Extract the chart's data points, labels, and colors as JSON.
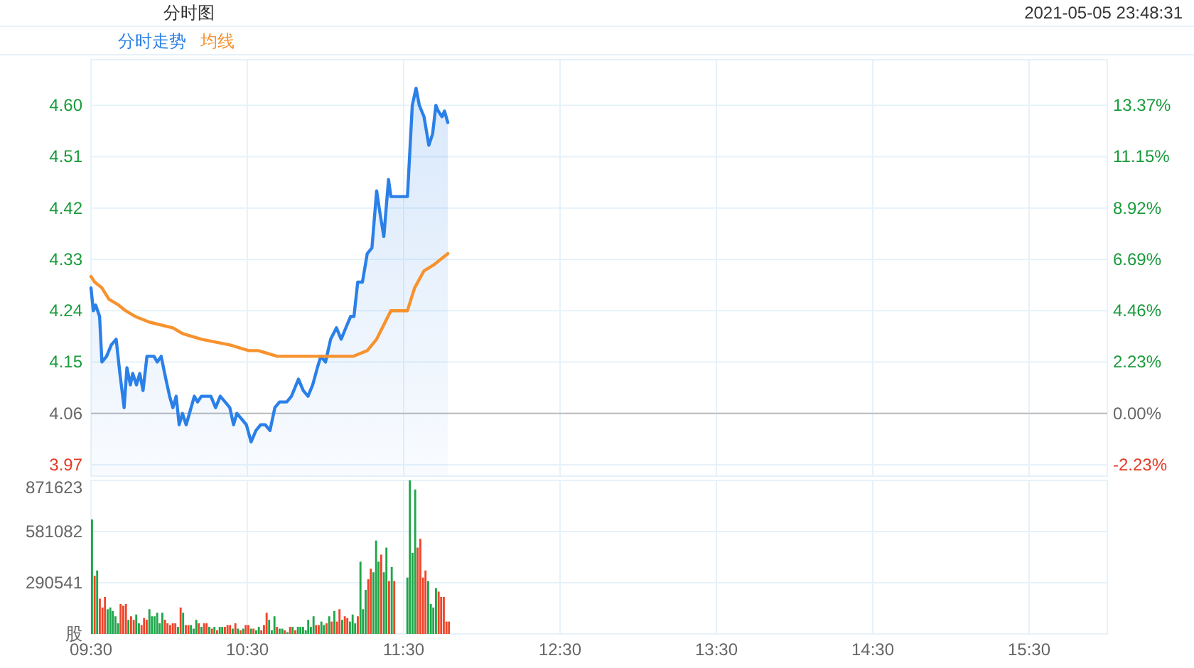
{
  "chart_data": [
    {
      "type": "line",
      "title": "分时图",
      "annotations": [
        "2021-05-05 23:48:31"
      ],
      "xlim": [
        9.5,
        16
      ],
      "xticks": [
        {
          "value": 9.5,
          "label": null
        },
        {
          "value": 10.5,
          "label": null
        },
        {
          "value": 11.5,
          "label": null
        },
        {
          "value": 12.5,
          "label": null
        },
        {
          "value": 13.5,
          "label": null
        },
        {
          "value": 14.5,
          "label": null
        },
        {
          "value": 15.5,
          "label": null
        }
      ],
      "ylim": [
        3.95,
        4.68
      ],
      "yticks": [
        3.97,
        4.06,
        4.15,
        4.24,
        4.33,
        4.42,
        4.51,
        {
          "value": 4.6,
          "label": "4.60"
        }
      ],
      "y2lim": [
        -2.72,
        15.35
      ],
      "y2ticks": [
        {
          "value": -2.23,
          "label": "-2.23%"
        },
        {
          "value": 0,
          "label": "0.00%"
        },
        {
          "value": 2.23,
          "label": "2.23%"
        },
        {
          "value": 4.46,
          "label": "4.46%"
        },
        {
          "value": 6.69,
          "label": "6.69%"
        },
        {
          "value": 8.92,
          "label": "8.92%"
        },
        {
          "value": 11.15,
          "label": "11.15%"
        },
        {
          "value": 13.37,
          "label": "13.37%"
        }
      ],
      "tick_labels": "y",
      "grid": true,
      "legend": "top left",
      "ref_lines": [
        {
          "axis": "y",
          "value": 4.06,
          "color": "#bbbbbb"
        }
      ],
      "series": [
        {
          "name": "分时走势",
          "type": "area",
          "color": "#2b80e8",
          "x": [
            9.5,
            9.515,
            9.53,
            9.555,
            9.57,
            9.6,
            9.63,
            9.661,
            9.685,
            9.712,
            9.73,
            9.752,
            9.767,
            9.791,
            9.812,
            9.833,
            9.858,
            9.879,
            9.903,
            9.924,
            9.949,
            9.979,
            10.003,
            10.024,
            10.045,
            10.064,
            10.085,
            10.109,
            10.13,
            10.161,
            10.182,
            10.206,
            10.236,
            10.267,
            10.297,
            10.327,
            10.358,
            10.388,
            10.412,
            10.433,
            10.464,
            10.494,
            10.524,
            10.555,
            10.585,
            10.615,
            10.645,
            10.676,
            10.706,
            10.752,
            10.782,
            10.827,
            10.858,
            10.888,
            10.918,
            10.948,
            10.97,
            11.0,
            11.033,
            11.07,
            11.1,
            11.13,
            11.161,
            11.182,
            11.206,
            11.236,
            11.267,
            11.297,
            11.327,
            11.349,
            11.373,
            11.403,
            11.418,
            11.494,
            11.524,
            11.555,
            11.579,
            11.6,
            11.63,
            11.661,
            11.685,
            11.706,
            11.721,
            11.745,
            11.761,
            11.782
          ],
          "values": [
            4.28,
            4.24,
            4.25,
            4.23,
            4.15,
            4.16,
            4.18,
            4.19,
            4.13,
            4.07,
            4.14,
            4.11,
            4.13,
            4.11,
            4.13,
            4.1,
            4.16,
            4.16,
            4.16,
            4.15,
            4.16,
            4.12,
            4.09,
            4.07,
            4.09,
            4.04,
            4.06,
            4.04,
            4.06,
            4.09,
            4.08,
            4.09,
            4.09,
            4.09,
            4.07,
            4.09,
            4.08,
            4.07,
            4.04,
            4.06,
            4.05,
            4.04,
            4.01,
            4.03,
            4.04,
            4.04,
            4.03,
            4.07,
            4.08,
            4.08,
            4.09,
            4.12,
            4.1,
            4.09,
            4.11,
            4.14,
            4.16,
            4.15,
            4.19,
            4.21,
            4.19,
            4.21,
            4.23,
            4.23,
            4.29,
            4.29,
            4.34,
            4.35,
            4.45,
            4.41,
            4.37,
            4.47,
            4.44,
            4.44,
            4.44,
            4.6,
            4.63,
            4.6,
            4.58,
            4.53,
            4.55,
            4.6,
            4.59,
            4.58,
            4.59,
            4.57
          ]
        },
        {
          "name": "均线",
          "color": "#f7922e",
          "x": [
            9.5,
            9.524,
            9.57,
            9.615,
            9.676,
            9.721,
            9.782,
            9.873,
            10.024,
            10.085,
            10.206,
            10.388,
            10.509,
            10.57,
            10.691,
            10.873,
            10.994,
            11.176,
            11.267,
            11.327,
            11.418,
            11.524,
            11.57,
            11.63,
            11.691,
            11.782
          ],
          "values": [
            4.3,
            4.29,
            4.28,
            4.26,
            4.25,
            4.24,
            4.23,
            4.22,
            4.21,
            4.2,
            4.19,
            4.18,
            4.17,
            4.17,
            4.16,
            4.16,
            4.16,
            4.16,
            4.17,
            4.19,
            4.24,
            4.24,
            4.28,
            4.31,
            4.32,
            4.34
          ]
        }
      ]
    },
    {
      "type": "bar",
      "xlim": [
        9.5,
        16
      ],
      "xticks": [
        {
          "value": 9.5,
          "label": "09:30"
        },
        {
          "value": 10.5,
          "label": "10:30"
        },
        {
          "value": 11.5,
          "label": "11:30"
        },
        {
          "value": 12.5,
          "label": "12:30"
        },
        {
          "value": 13.5,
          "label": "13:30"
        },
        {
          "value": 14.5,
          "label": "14:30"
        },
        {
          "value": 15.5,
          "label": "15:30"
        }
      ],
      "ylim": [
        0,
        871623
      ],
      "yticks": [
        {
          "value": 0,
          "label": "股"
        },
        290541,
        581082,
        871623
      ],
      "grid": true,
      "x": [
        9.5,
        9.517,
        9.533,
        9.55,
        9.567,
        9.583,
        9.6,
        9.617,
        9.633,
        9.65,
        9.667,
        9.683,
        9.7,
        9.717,
        9.733,
        9.75,
        9.767,
        9.783,
        9.8,
        9.817,
        9.833,
        9.85,
        9.867,
        9.883,
        9.9,
        9.917,
        9.933,
        9.95,
        9.967,
        9.983,
        10,
        10.017,
        10.033,
        10.05,
        10.067,
        10.083,
        10.1,
        10.117,
        10.133,
        10.15,
        10.167,
        10.183,
        10.2,
        10.217,
        10.233,
        10.25,
        10.267,
        10.283,
        10.3,
        10.317,
        10.333,
        10.35,
        10.367,
        10.383,
        10.4,
        10.417,
        10.433,
        10.45,
        10.467,
        10.483,
        10.5,
        10.517,
        10.533,
        10.55,
        10.567,
        10.583,
        10.6,
        10.617,
        10.633,
        10.65,
        10.667,
        10.683,
        10.7,
        10.717,
        10.733,
        10.75,
        10.767,
        10.783,
        10.8,
        10.817,
        10.833,
        10.85,
        10.867,
        10.883,
        10.9,
        10.917,
        10.933,
        10.95,
        10.967,
        10.983,
        11,
        11.017,
        11.033,
        11.05,
        11.067,
        11.083,
        11.1,
        11.117,
        11.133,
        11.15,
        11.167,
        11.183,
        11.2,
        11.217,
        11.233,
        11.25,
        11.267,
        11.283,
        11.3,
        11.317,
        11.333,
        11.35,
        11.367,
        11.383,
        11.4,
        11.417,
        11.433,
        11.517,
        11.533,
        11.55,
        11.567,
        11.583,
        11.6,
        11.617,
        11.633,
        11.65,
        11.667,
        11.683,
        11.7,
        11.717,
        11.733,
        11.75,
        11.767,
        11.783
      ],
      "values": [
        650000,
        330000,
        360000,
        200000,
        150000,
        210000,
        140000,
        150000,
        130000,
        100000,
        60000,
        170000,
        160000,
        170000,
        80000,
        100000,
        80000,
        110000,
        60000,
        50000,
        90000,
        80000,
        140000,
        100000,
        100000,
        120000,
        60000,
        120000,
        80000,
        60000,
        50000,
        60000,
        60000,
        40000,
        150000,
        120000,
        50000,
        50000,
        50000,
        30000,
        80000,
        60000,
        40000,
        60000,
        60000,
        40000,
        30000,
        40000,
        20000,
        40000,
        40000,
        40000,
        50000,
        50000,
        30000,
        60000,
        30000,
        20000,
        30000,
        50000,
        50000,
        30000,
        30000,
        20000,
        40000,
        20000,
        50000,
        120000,
        80000,
        20000,
        100000,
        40000,
        30000,
        30000,
        20000,
        10000,
        40000,
        40000,
        20000,
        40000,
        40000,
        40000,
        20000,
        80000,
        40000,
        100000,
        50000,
        50000,
        70000,
        50000,
        60000,
        100000,
        70000,
        130000,
        70000,
        140000,
        80000,
        100000,
        90000,
        70000,
        110000,
        60000,
        100000,
        410000,
        140000,
        250000,
        310000,
        370000,
        350000,
        530000,
        410000,
        450000,
        350000,
        490000,
        300000,
        380000,
        300000,
        320000,
        871623,
        460000,
        820000,
        490000,
        540000,
        320000,
        360000,
        300000,
        170000,
        150000,
        260000,
        240000,
        210000,
        210000,
        70000,
        70000
      ],
      "colors": [
        "#1fa64a",
        "#f0452a",
        "#1fa64a",
        "#f0452a",
        "#f0452a",
        "#f0452a",
        "#1fa64a",
        "#1fa64a",
        "#1fa64a",
        "#1fa64a",
        "#1fa64a",
        "#f0452a",
        "#f0452a",
        "#f0452a",
        "#1fa64a",
        "#f0452a",
        "#f0452a",
        "#1fa64a",
        "#1fa64a",
        "#f0452a",
        "#f0452a",
        "#f0452a",
        "#1fa64a",
        "#1fa64a",
        "#1fa64a",
        "#1fa64a",
        "#1fa64a",
        "#1fa64a",
        "#f0452a",
        "#f0452a",
        "#f0452a",
        "#f0452a",
        "#f0452a",
        "#1fa64a",
        "#f0452a",
        "#1fa64a",
        "#f0452a",
        "#f0452a",
        "#1fa64a",
        "#1fa64a",
        "#1fa64a",
        "#f0452a",
        "#1fa64a",
        "#f0452a",
        "#f0452a",
        "#1fa64a",
        "#f0452a",
        "#1fa64a",
        "#f0452a",
        "#1fa64a",
        "#1fa64a",
        "#f0452a",
        "#f0452a",
        "#f0452a",
        "#1fa64a",
        "#f0452a",
        "#1fa64a",
        "#f0452a",
        "#1fa64a",
        "#f0452a",
        "#f0452a",
        "#1fa64a",
        "#f0452a",
        "#1fa64a",
        "#1fa64a",
        "#f0452a",
        "#f0452a",
        "#f0452a",
        "#1fa64a",
        "#1fa64a",
        "#1fa64a",
        "#f0452a",
        "#1fa64a",
        "#1fa64a",
        "#f0452a",
        "#1fa64a",
        "#f0452a",
        "#1fa64a",
        "#f0452a",
        "#1fa64a",
        "#1fa64a",
        "#1fa64a",
        "#1fa64a",
        "#1fa64a",
        "#1fa64a",
        "#1fa64a",
        "#f0452a",
        "#f0452a",
        "#1fa64a",
        "#1fa64a",
        "#f0452a",
        "#1fa64a",
        "#f0452a",
        "#1fa64a",
        "#f0452a",
        "#f0452a",
        "#1fa64a",
        "#f0452a",
        "#f0452a",
        "#1fa64a",
        "#1fa64a",
        "#1fa64a",
        "#f0452a",
        "#1fa64a",
        "#1fa64a",
        "#1fa64a",
        "#f0452a",
        "#f0452a",
        "#1fa64a",
        "#1fa64a",
        "#1fa64a",
        "#f0452a",
        "#1fa64a",
        "#1fa64a",
        "#f0452a",
        "#1fa64a",
        "#f0452a",
        "#1fa64a",
        "#1fa64a",
        "#1fa64a",
        "#1fa64a",
        "#f0452a",
        "#f0452a",
        "#f0452a",
        "#f0452a",
        "#1fa64a",
        "#1fa64a",
        "#1fa64a",
        "#1fa64a",
        "#f0452a",
        "#f0452a",
        "#f0452a",
        "#f0452a",
        "#f0452a"
      ]
    }
  ]
}
